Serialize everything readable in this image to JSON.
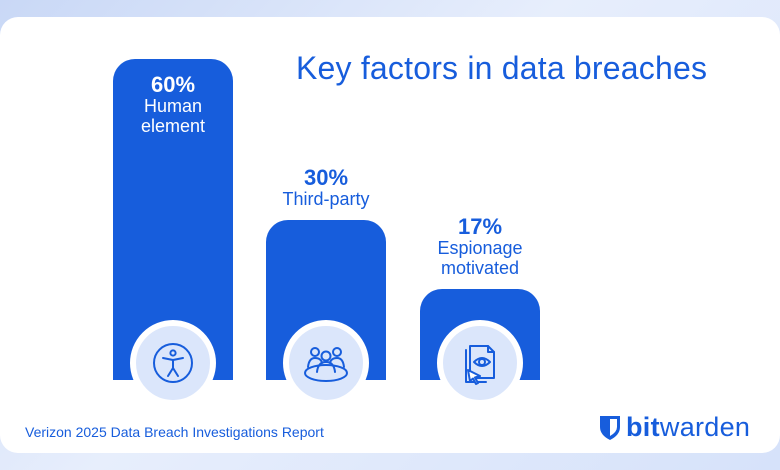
{
  "title": "Key factors in data breaches",
  "source": "Verizon 2025 Data Breach Investigations Report",
  "brand": {
    "bold": "bit",
    "regular": "warden",
    "color": "#175ddc"
  },
  "chart_data": {
    "type": "bar",
    "categories": [
      "Human element",
      "Third-party",
      "Espionage motivated"
    ],
    "values": [
      60,
      30,
      17
    ],
    "value_labels": [
      "60%",
      "30%",
      "17%"
    ],
    "category_lines": [
      [
        "Human",
        "element"
      ],
      [
        "Third-party"
      ],
      [
        "Espionage",
        "motivated"
      ]
    ],
    "icons": [
      "accessibility-person-icon",
      "group-people-icon",
      "document-eye-cursor-icon"
    ],
    "bar_color": "#175ddc",
    "unit": "%"
  }
}
